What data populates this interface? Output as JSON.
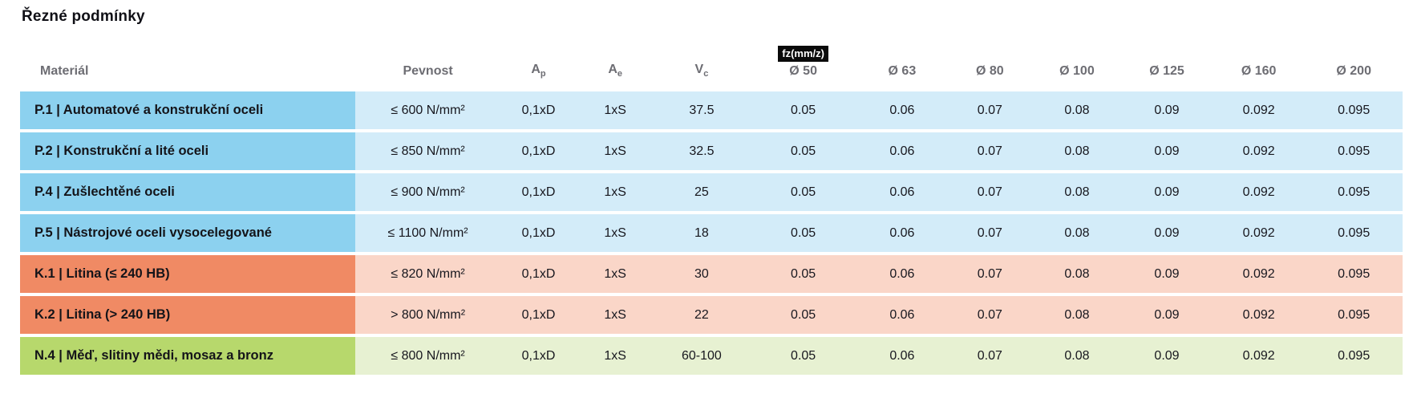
{
  "page": {
    "title": "Řezné podmínky",
    "background_color": "#ffffff"
  },
  "table": {
    "headers": {
      "material": "Materiál",
      "pevnost": "Pevnost",
      "ap": {
        "base": "A",
        "sub": "p"
      },
      "ae": {
        "base": "A",
        "sub": "e"
      },
      "vc": {
        "base": "V",
        "sub": "c"
      },
      "fz_badge": "fz(mm/z)",
      "diameters": [
        "Ø 50",
        "Ø 63",
        "Ø 80",
        "Ø 100",
        "Ø 125",
        "Ø 160",
        "Ø 200"
      ]
    },
    "colors": {
      "P": {
        "label": "#8cd1ef",
        "cells": "#d3ecf9"
      },
      "K": {
        "label": "#f08a64",
        "cells": "#fad6c8"
      },
      "N": {
        "label": "#b7d86c",
        "cells": "#e7f1d2"
      },
      "badge_bg": "#0a0a0a",
      "badge_text": "#ffffff",
      "header_text": "#6d6d73",
      "body_text": "#17171e"
    },
    "rows": [
      {
        "group": "P",
        "material": "P.1 | Automatové a konstrukční oceli",
        "pevnost": "≤ 600 N/mm²",
        "ap": "0,1xD",
        "ae": "1xS",
        "vc": "37.5",
        "fz": [
          "0.05",
          "0.06",
          "0.07",
          "0.08",
          "0.09",
          "0.092",
          "0.095"
        ]
      },
      {
        "group": "P",
        "material": "P.2 | Konstrukční a lité oceli",
        "pevnost": "≤ 850 N/mm²",
        "ap": "0,1xD",
        "ae": "1xS",
        "vc": "32.5",
        "fz": [
          "0.05",
          "0.06",
          "0.07",
          "0.08",
          "0.09",
          "0.092",
          "0.095"
        ]
      },
      {
        "group": "P",
        "material": "P.4 | Zušlechtěné oceli",
        "pevnost": "≤ 900 N/mm²",
        "ap": "0,1xD",
        "ae": "1xS",
        "vc": "25",
        "fz": [
          "0.05",
          "0.06",
          "0.07",
          "0.08",
          "0.09",
          "0.092",
          "0.095"
        ]
      },
      {
        "group": "P",
        "material": "P.5 | Nástrojové oceli vysocelegované",
        "pevnost": "≤ 1100 N/mm²",
        "ap": "0,1xD",
        "ae": "1xS",
        "vc": "18",
        "fz": [
          "0.05",
          "0.06",
          "0.07",
          "0.08",
          "0.09",
          "0.092",
          "0.095"
        ]
      },
      {
        "group": "K",
        "material": "K.1 | Litina (≤ 240 HB)",
        "pevnost": "≤ 820 N/mm²",
        "ap": "0,1xD",
        "ae": "1xS",
        "vc": "30",
        "fz": [
          "0.05",
          "0.06",
          "0.07",
          "0.08",
          "0.09",
          "0.092",
          "0.095"
        ]
      },
      {
        "group": "K",
        "material": "K.2 | Litina (> 240 HB)",
        "pevnost": "> 800 N/mm²",
        "ap": "0,1xD",
        "ae": "1xS",
        "vc": "22",
        "fz": [
          "0.05",
          "0.06",
          "0.07",
          "0.08",
          "0.09",
          "0.092",
          "0.095"
        ]
      },
      {
        "group": "N",
        "material": "N.4 | Měď, slitiny mědi, mosaz a bronz",
        "pevnost": "≤ 800 N/mm²",
        "ap": "0,1xD",
        "ae": "1xS",
        "vc": "60-100",
        "fz": [
          "0.05",
          "0.06",
          "0.07",
          "0.08",
          "0.09",
          "0.092",
          "0.095"
        ]
      }
    ]
  }
}
